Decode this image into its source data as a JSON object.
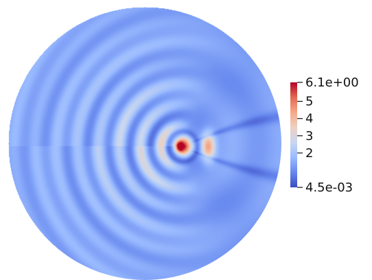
{
  "chart_data": {
    "type": "heatmap",
    "title": "",
    "field_shape": "disk",
    "colormap": {
      "name": "coolwarm",
      "stops": [
        "#3b4cc0",
        "#6788ee",
        "#9abbff",
        "#c9d7f0",
        "#edd1c2",
        "#f7a889",
        "#e26952",
        "#b40426"
      ]
    },
    "colorbar": {
      "min": 0.0045,
      "max": 6.1,
      "ticks": [
        {
          "value": 6.1,
          "label": "6.1e+00"
        },
        {
          "value": 5,
          "label": "5"
        },
        {
          "value": 4,
          "label": "4"
        },
        {
          "value": 3,
          "label": "3"
        },
        {
          "value": 2,
          "label": "2"
        },
        {
          "value": 0.0045,
          "label": "4.5e-03"
        }
      ]
    },
    "field": {
      "background_level": 1.35,
      "source_peak": 6.1,
      "secondary_peak": 4.7,
      "ring_level": 2.9,
      "description_free": true
    }
  }
}
